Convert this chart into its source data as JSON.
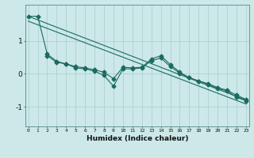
{
  "xlabel": "Humidex (Indice chaleur)",
  "bg_color": "#cce8e8",
  "grid_color": "#aacccc",
  "line_color": "#1a6b60",
  "x_data": [
    0,
    1,
    2,
    3,
    4,
    5,
    6,
    7,
    8,
    9,
    10,
    11,
    12,
    13,
    14,
    15,
    16,
    17,
    18,
    19,
    20,
    21,
    22,
    23
  ],
  "line1_y": [
    1.75,
    1.75,
    0.6,
    0.38,
    0.3,
    0.22,
    0.18,
    0.12,
    0.05,
    -0.15,
    0.2,
    0.18,
    0.2,
    0.45,
    0.55,
    0.28,
    0.05,
    -0.12,
    -0.22,
    -0.32,
    -0.45,
    -0.52,
    -0.72,
    -0.82
  ],
  "line2_y": [
    null,
    null,
    0.55,
    0.35,
    0.3,
    0.18,
    0.15,
    0.08,
    -0.05,
    -0.38,
    0.15,
    0.15,
    0.18,
    0.4,
    0.48,
    0.22,
    0.02,
    -0.12,
    -0.22,
    -0.3,
    -0.42,
    -0.5,
    -0.65,
    -0.78
  ],
  "trend1_x": [
    0,
    23
  ],
  "trend1_y": [
    1.75,
    -0.8
  ],
  "trend2_x": [
    0,
    23
  ],
  "trend2_y": [
    1.6,
    -0.92
  ],
  "ylim": [
    -1.6,
    2.1
  ],
  "xlim": [
    -0.3,
    23.3
  ],
  "yticks": [
    -1,
    0,
    1
  ],
  "xticks": [
    0,
    1,
    2,
    3,
    4,
    5,
    6,
    7,
    8,
    9,
    10,
    11,
    12,
    13,
    14,
    15,
    16,
    17,
    18,
    19,
    20,
    21,
    22,
    23
  ],
  "xtick_labels": [
    "0",
    "1",
    "2",
    "3",
    "4",
    "5",
    "6",
    "7",
    "8",
    "9",
    "10",
    "11",
    "12",
    "13",
    "14",
    "15",
    "16",
    "17",
    "18",
    "19",
    "20",
    "21",
    "22",
    "23"
  ]
}
